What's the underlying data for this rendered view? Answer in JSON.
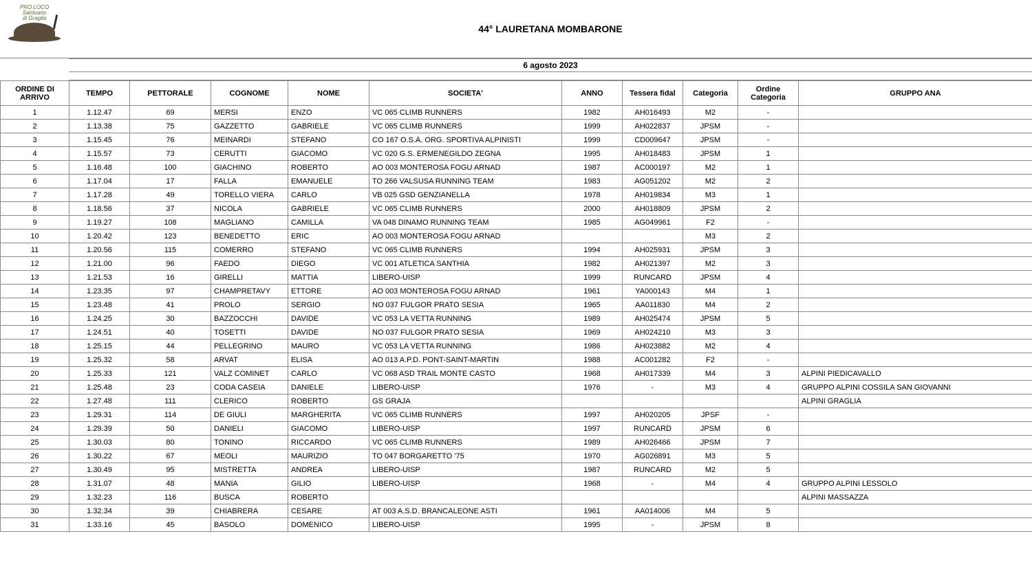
{
  "title": "44° LAURETANA MOMBARONE",
  "date": "6 agosto 2023",
  "logo": {
    "line1": "PRO LOCO",
    "line2": "Santuario",
    "line3": "di Graglia"
  },
  "columns": [
    "ORDINE DI ARRIVO",
    "TEMPO",
    "PETTORALE",
    "COGNOME",
    "NOME",
    "SOCIETA'",
    "ANNO",
    "Tessera fidal",
    "Categoria",
    "Ordine Categoria",
    "GRUPPO ANA"
  ],
  "col_align": [
    "center",
    "center",
    "center",
    "left",
    "left",
    "left",
    "center",
    "center",
    "center",
    "center",
    "left"
  ],
  "rows": [
    {
      "ord": "1",
      "tempo": "1.12.47",
      "pett": "69",
      "cog": "MERSI",
      "nome": "ENZO",
      "soc": "VC 065 CLIMB RUNNERS",
      "anno": "1982",
      "tess": "AH016493",
      "cat": "M2",
      "ordcat": "-",
      "ana": ""
    },
    {
      "ord": "2",
      "tempo": "1.13.38",
      "pett": "75",
      "cog": "GAZZETTO",
      "nome": "GABRIELE",
      "soc": "VC 065 CLIMB RUNNERS",
      "anno": "1999",
      "tess": "AH022837",
      "cat": "JPSM",
      "ordcat": "-",
      "ana": ""
    },
    {
      "ord": "3",
      "tempo": "1.15.45",
      "pett": "76",
      "cog": "MEINARDI",
      "nome": "STEFANO",
      "soc": "CO 167 O.S.A. ORG. SPORTIVA ALPINISTI",
      "anno": "1999",
      "tess": "CD009647",
      "cat": "JPSM",
      "ordcat": "-",
      "ana": ""
    },
    {
      "ord": "4",
      "tempo": "1.15.57",
      "pett": "73",
      "cog": "CERUTTI",
      "nome": "GIACOMO",
      "soc": "VC 020 G.S. ERMENEGILDO ZEGNA",
      "anno": "1995",
      "tess": "AH018483",
      "cat": "JPSM",
      "ordcat": "1",
      "ana": ""
    },
    {
      "ord": "5",
      "tempo": "1.16.48",
      "pett": "100",
      "cog": "GIACHINO",
      "nome": "ROBERTO",
      "soc": "AO 003 MONTEROSA FOGU ARNAD",
      "anno": "1987",
      "tess": "AC000197",
      "cat": "M2",
      "ordcat": "1",
      "ana": ""
    },
    {
      "ord": "6",
      "tempo": "1.17.04",
      "pett": "17",
      "cog": "FALLA",
      "nome": "EMANUELE",
      "soc": "TO 266 VALSUSA RUNNING TEAM",
      "anno": "1983",
      "tess": "AG051202",
      "cat": "M2",
      "ordcat": "2",
      "ana": ""
    },
    {
      "ord": "7",
      "tempo": "1.17.28",
      "pett": "49",
      "cog": "TORELLO VIERA",
      "nome": "CARLO",
      "soc": "VB 025 GSD GENZIANELLA",
      "anno": "1978",
      "tess": "AH019834",
      "cat": "M3",
      "ordcat": "1",
      "ana": ""
    },
    {
      "ord": "8",
      "tempo": "1.18.56",
      "pett": "37",
      "cog": "NICOLA",
      "nome": "GABRIELE",
      "soc": "VC 065 CLIMB RUNNERS",
      "anno": "2000",
      "tess": "AH018809",
      "cat": "JPSM",
      "ordcat": "2",
      "ana": ""
    },
    {
      "ord": "9",
      "tempo": "1.19.27",
      "pett": "108",
      "cog": "MAGLIANO",
      "nome": "CAMILLA",
      "soc": "VA 048 DINAMO RUNNING TEAM",
      "anno": "1985",
      "tess": "AG049961",
      "cat": "F2",
      "ordcat": "-",
      "ana": ""
    },
    {
      "ord": "10",
      "tempo": "1.20.42",
      "pett": "123",
      "cog": "BENEDETTO",
      "nome": "ERIC",
      "soc": "AO 003 MONTEROSA FOGU ARNAD",
      "anno": "",
      "tess": "",
      "cat": "M3",
      "ordcat": "2",
      "ana": ""
    },
    {
      "ord": "11",
      "tempo": "1.20.56",
      "pett": "115",
      "cog": "COMERRO",
      "nome": "STEFANO",
      "soc": "VC 065 CLIMB RUNNERS",
      "anno": "1994",
      "tess": "AH025931",
      "cat": "JPSM",
      "ordcat": "3",
      "ana": ""
    },
    {
      "ord": "12",
      "tempo": "1.21.00",
      "pett": "96",
      "cog": "FAEDO",
      "nome": "DIEGO",
      "soc": "VC 001 ATLETICA SANTHIA",
      "anno": "1982",
      "tess": "AH021397",
      "cat": "M2",
      "ordcat": "3",
      "ana": ""
    },
    {
      "ord": "13",
      "tempo": "1.21.53",
      "pett": "16",
      "cog": "GIRELLI",
      "nome": "MATTIA",
      "soc": "LIBERO-UISP",
      "anno": "1999",
      "tess": "RUNCARD",
      "cat": "JPSM",
      "ordcat": "4",
      "ana": ""
    },
    {
      "ord": "14",
      "tempo": "1.23.35",
      "pett": "97",
      "cog": "CHAMPRETAVY",
      "nome": "ETTORE",
      "soc": "AO 003 MONTEROSA FOGU ARNAD",
      "anno": "1961",
      "tess": "YA000143",
      "cat": "M4",
      "ordcat": "1",
      "ana": ""
    },
    {
      "ord": "15",
      "tempo": "1.23.48",
      "pett": "41",
      "cog": "PROLO",
      "nome": "SERGIO",
      "soc": "NO 037 FULGOR PRATO SESIA",
      "anno": "1965",
      "tess": "AA011830",
      "cat": "M4",
      "ordcat": "2",
      "ana": ""
    },
    {
      "ord": "16",
      "tempo": "1.24.25",
      "pett": "30",
      "cog": "BAZZOCCHI",
      "nome": "DAVIDE",
      "soc": "VC 053 LA VETTA RUNNING",
      "anno": "1989",
      "tess": "AH025474",
      "cat": "JPSM",
      "ordcat": "5",
      "ana": ""
    },
    {
      "ord": "17",
      "tempo": "1.24.51",
      "pett": "40",
      "cog": "TOSETTI",
      "nome": "DAVIDE",
      "soc": "NO 037 FULGOR PRATO SESIA",
      "anno": "1969",
      "tess": "AH024210",
      "cat": "M3",
      "ordcat": "3",
      "ana": ""
    },
    {
      "ord": "18",
      "tempo": "1.25.15",
      "pett": "44",
      "cog": "PELLEGRINO",
      "nome": "MAURO",
      "soc": "VC 053 LA VETTA RUNNING",
      "anno": "1986",
      "tess": "AH023882",
      "cat": "M2",
      "ordcat": "4",
      "ana": ""
    },
    {
      "ord": "19",
      "tempo": "1.25.32",
      "pett": "58",
      "cog": "ARVAT",
      "nome": "ELISA",
      "soc": "AO 013 A.P.D. PONT-SAINT-MARTIN",
      "anno": "1988",
      "tess": "AC001282",
      "cat": "F2",
      "ordcat": "-",
      "ana": ""
    },
    {
      "ord": "20",
      "tempo": "1.25.33",
      "pett": "121",
      "cog": "VALZ COMINET",
      "nome": "CARLO",
      "soc": "VC 068 ASD TRAIL MONTE CASTO",
      "anno": "1968",
      "tess": "AH017339",
      "cat": "M4",
      "ordcat": "3",
      "ana": "ALPINI PIEDICAVALLO"
    },
    {
      "ord": "21",
      "tempo": "1.25.48",
      "pett": "23",
      "cog": "CODA CASEIA",
      "nome": "DANIELE",
      "soc": "LIBERO-UISP",
      "anno": "1976",
      "tess": "-",
      "cat": "M3",
      "ordcat": "4",
      "ana": "GRUPPO ALPINI COSSILA SAN GIOVANNI"
    },
    {
      "ord": "22",
      "tempo": "1.27.48",
      "pett": "111",
      "cog": "CLERICO",
      "nome": "ROBERTO",
      "soc": "GS GRAJA",
      "anno": "",
      "tess": "",
      "cat": "",
      "ordcat": "",
      "ana": "ALPINI GRAGLIA"
    },
    {
      "ord": "23",
      "tempo": "1.29.31",
      "pett": "114",
      "cog": "DE GIULI",
      "nome": "MARGHERITA",
      "soc": "VC 065 CLIMB RUNNERS",
      "anno": "1997",
      "tess": "AH020205",
      "cat": "JPSF",
      "ordcat": "-",
      "ana": ""
    },
    {
      "ord": "24",
      "tempo": "1.29.39",
      "pett": "50",
      "cog": "DANIELI",
      "nome": "GIACOMO",
      "soc": "LIBERO-UISP",
      "anno": "1997",
      "tess": "RUNCARD",
      "cat": "JPSM",
      "ordcat": "6",
      "ana": ""
    },
    {
      "ord": "25",
      "tempo": "1.30.03",
      "pett": "80",
      "cog": "TONINO",
      "nome": "RICCARDO",
      "soc": "VC 065 CLIMB RUNNERS",
      "anno": "1989",
      "tess": "AH026466",
      "cat": "JPSM",
      "ordcat": "7",
      "ana": ""
    },
    {
      "ord": "26",
      "tempo": "1.30.22",
      "pett": "67",
      "cog": "MEOLI",
      "nome": "MAURIZIO",
      "soc": "TO 047 BORGARETTO '75",
      "anno": "1970",
      "tess": "AG026891",
      "cat": "M3",
      "ordcat": "5",
      "ana": ""
    },
    {
      "ord": "27",
      "tempo": "1.30.49",
      "pett": "95",
      "cog": "MISTRETTA",
      "nome": "ANDREA",
      "soc": "LIBERO-UISP",
      "anno": "1987",
      "tess": "RUNCARD",
      "cat": "M2",
      "ordcat": "5",
      "ana": ""
    },
    {
      "ord": "28",
      "tempo": "1.31.07",
      "pett": "48",
      "cog": "MANIA",
      "nome": "GILIO",
      "soc": "LIBERO-UISP",
      "anno": "1968",
      "tess": "-",
      "cat": "M4",
      "ordcat": "4",
      "ana": "GRUPPO ALPINI LESSOLO"
    },
    {
      "ord": "29",
      "tempo": "1.32.23",
      "pett": "116",
      "cog": "BUSCA",
      "nome": "ROBERTO",
      "soc": "",
      "anno": "",
      "tess": "",
      "cat": "",
      "ordcat": "",
      "ana": "ALPINI MASSAZZA"
    },
    {
      "ord": "30",
      "tempo": "1.32.34",
      "pett": "39",
      "cog": "CHIABRERA",
      "nome": "CESARE",
      "soc": "AT 003 A.S.D. BRANCALEONE ASTI",
      "anno": "1961",
      "tess": "AA014006",
      "cat": "M4",
      "ordcat": "5",
      "ana": ""
    },
    {
      "ord": "31",
      "tempo": "1.33.16",
      "pett": "45",
      "cog": "BASOLO",
      "nome": "DOMENICO",
      "soc": "LIBERO-UISP",
      "anno": "1995",
      "tess": "-",
      "cat": "JPSM",
      "ordcat": "8",
      "ana": ""
    }
  ]
}
